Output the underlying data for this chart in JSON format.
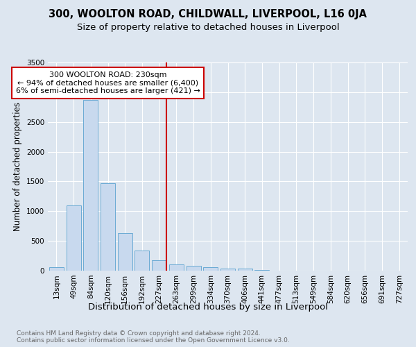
{
  "title": "300, WOOLTON ROAD, CHILDWALL, LIVERPOOL, L16 0JA",
  "subtitle": "Size of property relative to detached houses in Liverpool",
  "xlabel": "Distribution of detached houses by size in Liverpool",
  "ylabel": "Number of detached properties",
  "bar_labels": [
    "13sqm",
    "49sqm",
    "84sqm",
    "120sqm",
    "156sqm",
    "192sqm",
    "227sqm",
    "263sqm",
    "299sqm",
    "334sqm",
    "370sqm",
    "406sqm",
    "441sqm",
    "477sqm",
    "513sqm",
    "549sqm",
    "584sqm",
    "620sqm",
    "656sqm",
    "691sqm",
    "727sqm"
  ],
  "bar_values": [
    55,
    1100,
    2870,
    1470,
    630,
    340,
    175,
    100,
    85,
    55,
    35,
    30,
    10,
    5,
    0,
    0,
    0,
    0,
    0,
    0,
    0
  ],
  "bar_color": "#c8d9ee",
  "bar_edge_color": "#6aaad4",
  "vline_index": 6,
  "vline_color": "#cc0000",
  "annotation_text": "300 WOOLTON ROAD: 230sqm\n← 94% of detached houses are smaller (6,400)\n6% of semi-detached houses are larger (421) →",
  "annotation_box_color": "white",
  "annotation_box_edge_color": "#cc0000",
  "ylim": [
    0,
    3500
  ],
  "yticks": [
    0,
    500,
    1000,
    1500,
    2000,
    2500,
    3000,
    3500
  ],
  "background_color": "#dde6f0",
  "plot_bg_color": "#dde6f0",
  "footer_text": "Contains HM Land Registry data © Crown copyright and database right 2024.\nContains public sector information licensed under the Open Government Licence v3.0.",
  "title_fontsize": 10.5,
  "subtitle_fontsize": 9.5,
  "xlabel_fontsize": 9.5,
  "ylabel_fontsize": 8.5,
  "tick_fontsize": 7.5,
  "footer_fontsize": 6.5,
  "annotation_fontsize": 8
}
